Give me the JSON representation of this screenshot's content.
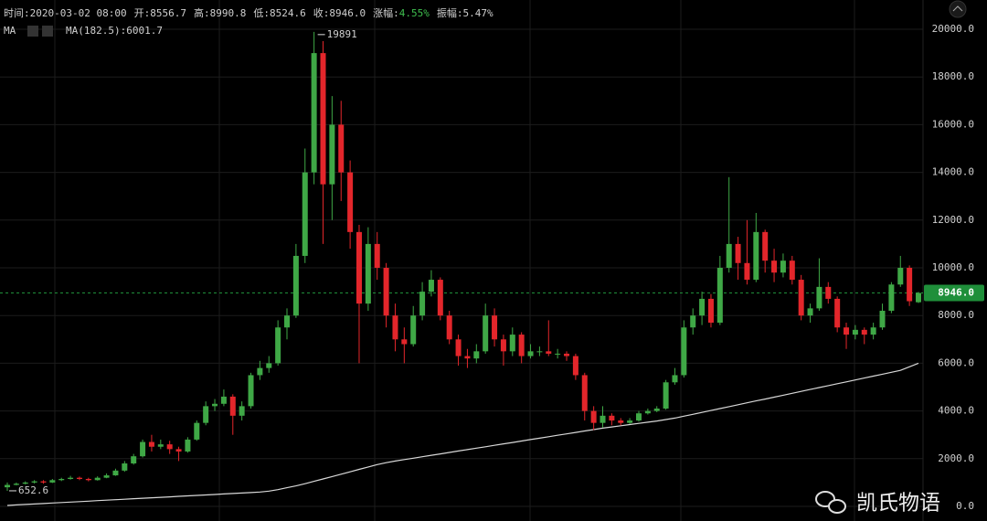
{
  "chart_data": {
    "type": "candlestick",
    "info": [
      {
        "key": "时间:",
        "text": "2020-03-02 08:00"
      },
      {
        "key": "开:",
        "text": "8556.7"
      },
      {
        "key": "高:",
        "text": "8990.8"
      },
      {
        "key": "低:",
        "text": "8524.6"
      },
      {
        "key": "收:",
        "text": "8946.0"
      },
      {
        "key": "涨幅:",
        "text": "4.55%",
        "color": "#3fbf4f"
      },
      {
        "key": "振幅:",
        "text": "5.47%"
      }
    ],
    "indicator": "MA",
    "ma": {
      "legend": "MA(182.5):6001.7",
      "color": "#d8d8d8",
      "values": [
        40,
        60,
        80,
        100,
        120,
        140,
        160,
        180,
        200,
        220,
        240,
        260,
        280,
        300,
        320,
        340,
        360,
        380,
        400,
        420,
        440,
        460,
        480,
        500,
        520,
        540,
        560,
        580,
        600,
        640,
        700,
        780,
        860,
        950,
        1050,
        1150,
        1250,
        1350,
        1450,
        1550,
        1650,
        1750,
        1830,
        1900,
        1960,
        2020,
        2080,
        2140,
        2200,
        2260,
        2320,
        2380,
        2440,
        2500,
        2560,
        2620,
        2680,
        2740,
        2800,
        2860,
        2920,
        2980,
        3040,
        3100,
        3160,
        3220,
        3280,
        3330,
        3380,
        3430,
        3480,
        3530,
        3580,
        3640,
        3700,
        3780,
        3860,
        3940,
        4020,
        4100,
        4180,
        4260,
        4340,
        4420,
        4500,
        4580,
        4660,
        4740,
        4820,
        4900,
        4980,
        5060,
        5140,
        5220,
        5300,
        5380,
        5460,
        5540,
        5620,
        5700,
        5850,
        6001.7
      ]
    },
    "open": [
      800,
      900,
      950,
      1000,
      1050,
      1000,
      1100,
      1150,
      1200,
      1150,
      1100,
      1200,
      1300,
      1500,
      1800,
      2100,
      2700,
      2500,
      2600,
      2400,
      2300,
      2800,
      3500,
      4200,
      4300,
      4600,
      3800,
      4200,
      5500,
      5800,
      6000,
      7500,
      8000,
      10500,
      14000,
      19000,
      13500,
      16000,
      14000,
      11500,
      8500,
      11000,
      10000,
      8000,
      7000,
      6800,
      8000,
      9000,
      9500,
      8000,
      7000,
      6300,
      6200,
      6500,
      8000,
      7000,
      6500,
      7200,
      6300,
      6500,
      6500,
      6400,
      6400,
      6300,
      5500,
      4000,
      3500,
      3800,
      3600,
      3500,
      3600,
      3900,
      4000,
      4100,
      5200,
      5500,
      7500,
      8000,
      8700,
      7700,
      10000,
      11000,
      10200,
      9500,
      11500,
      10300,
      9800,
      10300,
      9500,
      8000,
      8300,
      9200,
      8700,
      7500,
      7200,
      7400,
      7200,
      7500,
      8200,
      9300,
      10000,
      8556.7
    ],
    "high": [
      1000,
      1000,
      1050,
      1100,
      1100,
      1150,
      1200,
      1280,
      1250,
      1200,
      1260,
      1380,
      1580,
      1900,
      2200,
      2800,
      3000,
      2800,
      2750,
      2500,
      2900,
      3600,
      4400,
      4500,
      4900,
      4700,
      4400,
      5600,
      6100,
      6300,
      7800,
      8300,
      11000,
      15000,
      19891,
      19500,
      17200,
      17000,
      14500,
      11800,
      11700,
      11500,
      10200,
      8500,
      7500,
      8400,
      9400,
      9900,
      9600,
      8200,
      7200,
      6600,
      6800,
      8500,
      8300,
      7200,
      7500,
      7300,
      6800,
      6700,
      7800,
      6600,
      6500,
      6400,
      5600,
      4200,
      4200,
      3900,
      3700,
      3700,
      4000,
      4100,
      4200,
      5300,
      5800,
      7800,
      8300,
      9000,
      8900,
      10500,
      13800,
      11300,
      12000,
      12300,
      11600,
      10800,
      10600,
      10500,
      9700,
      8500,
      10400,
      9400,
      8800,
      7700,
      7600,
      7500,
      7700,
      8500,
      9400,
      10500,
      10100,
      8990.8
    ],
    "low": [
      652.6,
      880,
      920,
      960,
      950,
      980,
      1060,
      1120,
      1100,
      1050,
      1080,
      1180,
      1280,
      1450,
      1750,
      2050,
      2300,
      2400,
      2200,
      1900,
      2250,
      2750,
      3400,
      4000,
      4200,
      3000,
      3600,
      4100,
      5300,
      5600,
      5900,
      7000,
      7900,
      10200,
      13500,
      11000,
      12000,
      12800,
      10800,
      6000,
      8200,
      9500,
      7500,
      6500,
      6000,
      6700,
      7800,
      8800,
      7800,
      6800,
      5900,
      5800,
      6000,
      6400,
      6700,
      5900,
      6300,
      6000,
      6200,
      6300,
      6300,
      6200,
      6100,
      5300,
      3600,
      3200,
      3300,
      3400,
      3400,
      3450,
      3550,
      3850,
      3950,
      4050,
      5100,
      5400,
      7200,
      7600,
      7500,
      7600,
      9800,
      9500,
      9300,
      9400,
      9800,
      9400,
      9600,
      9300,
      7800,
      7700,
      8200,
      8500,
      7300,
      6600,
      7000,
      6800,
      7000,
      7400,
      8100,
      9200,
      8400,
      8524.6
    ],
    "close": [
      900,
      950,
      1000,
      1050,
      1000,
      1100,
      1150,
      1200,
      1150,
      1100,
      1200,
      1300,
      1500,
      1800,
      2100,
      2700,
      2500,
      2600,
      2400,
      2300,
      2800,
      3500,
      4200,
      4300,
      4600,
      3800,
      4200,
      5500,
      5800,
      6000,
      7500,
      8000,
      10500,
      14000,
      19000,
      13500,
      16000,
      14000,
      11500,
      8500,
      11000,
      10000,
      8000,
      7000,
      6800,
      8000,
      9000,
      9500,
      8000,
      7000,
      6300,
      6200,
      6500,
      8000,
      7000,
      6500,
      7200,
      6300,
      6500,
      6500,
      6400,
      6400,
      6300,
      5500,
      4000,
      3500,
      3800,
      3600,
      3500,
      3600,
      3900,
      4000,
      4100,
      5200,
      5500,
      7500,
      8000,
      8700,
      7700,
      10000,
      11000,
      10200,
      9500,
      11500,
      10300,
      9800,
      10300,
      9500,
      8000,
      8300,
      9200,
      8700,
      7500,
      7200,
      7400,
      7200,
      7500,
      8200,
      9300,
      10000,
      8600,
      8946
    ],
    "up_color": "#3fa846",
    "down_color": "#e3262b",
    "current_price": {
      "value": 8946,
      "label": "8946.0",
      "color": "#1f8f3a"
    },
    "ylim": [
      -613,
      21226
    ],
    "yticks": [
      {
        "value": 0,
        "label": "0.0"
      },
      {
        "value": 2000,
        "label": "2000.0"
      },
      {
        "value": 4000,
        "label": "4000.0"
      },
      {
        "value": 6000,
        "label": "6000.0"
      },
      {
        "value": 8000,
        "label": "8000.0"
      },
      {
        "value": 10000,
        "label": "10000.0"
      },
      {
        "value": 12000,
        "label": "12000.0"
      },
      {
        "value": 14000,
        "label": "14000.0"
      },
      {
        "value": 16000,
        "label": "16000.0"
      },
      {
        "value": 18000,
        "label": "18000.0"
      },
      {
        "value": 20000,
        "label": "20000.0"
      }
    ],
    "grid": true,
    "watermark": "凯氏物语"
  }
}
